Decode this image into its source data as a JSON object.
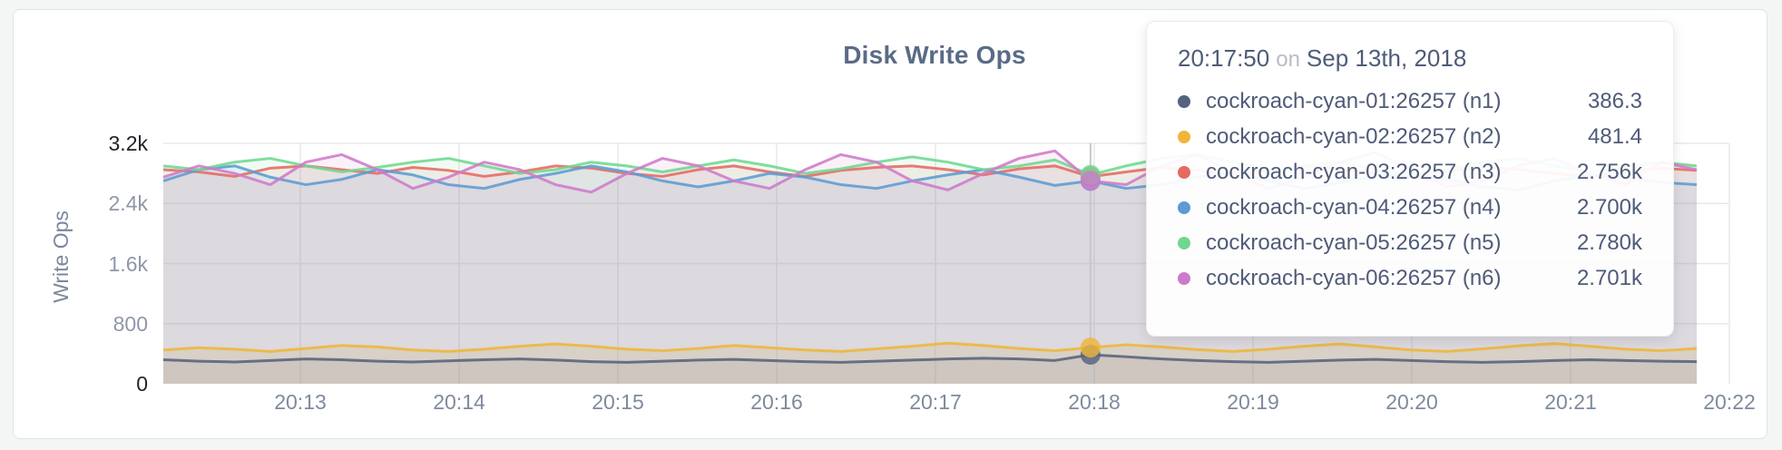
{
  "card": {
    "title": "Disk Write Ops",
    "y_axis_label": "Write Ops"
  },
  "tooltip": {
    "time": "20:17:50",
    "conjunction": "on",
    "date": "Sep 13th, 2018",
    "entries": [
      {
        "label": "cockroach-cyan-01:26257 (n1)",
        "value": "386.3",
        "color": "#56627E"
      },
      {
        "label": "cockroach-cyan-02:26257 (n2)",
        "value": "481.4",
        "color": "#EEB639"
      },
      {
        "label": "cockroach-cyan-03:26257 (n3)",
        "value": "2.756k",
        "color": "#E56A62"
      },
      {
        "label": "cockroach-cyan-04:26257 (n4)",
        "value": "2.700k",
        "color": "#5C9BD3"
      },
      {
        "label": "cockroach-cyan-05:26257 (n5)",
        "value": "2.780k",
        "color": "#70D78F"
      },
      {
        "label": "cockroach-cyan-06:26257 (n6)",
        "value": "2.701k",
        "color": "#CF7AC8"
      }
    ]
  },
  "chart_data": {
    "type": "line",
    "title": "Disk Write Ops",
    "ylabel": "Write Ops",
    "ylim": [
      0,
      3200
    ],
    "grid": true,
    "hover_time": "20:17:50",
    "hover_index": 26,
    "x_ticks": [
      "20:13",
      "20:14",
      "20:15",
      "20:16",
      "20:17",
      "20:18",
      "20:19",
      "20:20",
      "20:21",
      "20:22"
    ],
    "y_ticks": [
      {
        "label": "0",
        "value": 0,
        "emph": true
      },
      {
        "label": "800",
        "value": 800,
        "emph": false
      },
      {
        "label": "1.6k",
        "value": 1600,
        "emph": false
      },
      {
        "label": "2.4k",
        "value": 2400,
        "emph": false
      },
      {
        "label": "3.2k",
        "value": 3200,
        "emph": true
      }
    ],
    "series": [
      {
        "name": "cockroach-cyan-01:26257 (n1)",
        "node": "n1",
        "color": "#56627E",
        "fill_opacity": 0.12,
        "hover_value": 386.3,
        "values": [
          320,
          300,
          290,
          310,
          330,
          320,
          300,
          290,
          305,
          320,
          330,
          315,
          295,
          285,
          300,
          315,
          325,
          310,
          295,
          285,
          300,
          315,
          330,
          340,
          330,
          310,
          386,
          360,
          330,
          310,
          295,
          285,
          300,
          315,
          325,
          310,
          295,
          285,
          295,
          310,
          320,
          310,
          300,
          295
        ]
      },
      {
        "name": "cockroach-cyan-02:26257 (n2)",
        "node": "n2",
        "color": "#EEB639",
        "fill_opacity": 0.18,
        "hover_value": 481.4,
        "values": [
          450,
          480,
          460,
          430,
          470,
          510,
          490,
          450,
          430,
          460,
          500,
          530,
          500,
          460,
          440,
          470,
          510,
          480,
          450,
          430,
          465,
          500,
          540,
          510,
          470,
          440,
          481,
          520,
          490,
          455,
          430,
          460,
          500,
          530,
          490,
          450,
          430,
          465,
          505,
          535,
          500,
          460,
          440,
          470
        ]
      },
      {
        "name": "cockroach-cyan-03:26257 (n3)",
        "node": "n3",
        "color": "#E56A62",
        "fill_opacity": 0.1,
        "hover_value": 2756,
        "values": [
          2850,
          2820,
          2760,
          2870,
          2900,
          2850,
          2800,
          2880,
          2840,
          2760,
          2820,
          2900,
          2870,
          2800,
          2760,
          2850,
          2900,
          2820,
          2760,
          2840,
          2880,
          2900,
          2850,
          2780,
          2860,
          2900,
          2756,
          2820,
          2880,
          2840,
          2780,
          2850,
          2900,
          2860,
          2800,
          2750,
          2830,
          2890,
          2850,
          2800,
          2760,
          2820,
          2870,
          2840
        ]
      },
      {
        "name": "cockroach-cyan-04:26257 (n4)",
        "node": "n4",
        "color": "#5C9BD3",
        "fill_opacity": 0.1,
        "hover_value": 2700,
        "values": [
          2700,
          2850,
          2900,
          2750,
          2650,
          2720,
          2850,
          2780,
          2650,
          2600,
          2720,
          2800,
          2900,
          2820,
          2700,
          2620,
          2700,
          2800,
          2750,
          2650,
          2600,
          2700,
          2780,
          2850,
          2750,
          2640,
          2700,
          2600,
          2650,
          2750,
          2820,
          2700,
          2600,
          2680,
          2760,
          2800,
          2720,
          2620,
          2580,
          2700,
          2780,
          2740,
          2680,
          2650
        ]
      },
      {
        "name": "cockroach-cyan-05:26257 (n5)",
        "node": "n5",
        "color": "#70D78F",
        "fill_opacity": 0.1,
        "hover_value": 2780,
        "values": [
          2900,
          2850,
          2950,
          3000,
          2900,
          2820,
          2880,
          2950,
          3000,
          2900,
          2800,
          2850,
          2950,
          2900,
          2820,
          2900,
          2980,
          2900,
          2800,
          2860,
          2950,
          3020,
          2950,
          2850,
          2900,
          2980,
          2780,
          2900,
          3000,
          3050,
          2950,
          2850,
          2900,
          2950,
          2850,
          2780,
          2850,
          2950,
          3000,
          2900,
          2820,
          2880,
          2950,
          2900
        ]
      },
      {
        "name": "cockroach-cyan-06:26257 (n6)",
        "node": "n6",
        "color": "#CF7AC8",
        "fill_opacity": 0.1,
        "hover_value": 2701,
        "values": [
          2750,
          2900,
          2800,
          2650,
          2950,
          3050,
          2850,
          2600,
          2750,
          2950,
          2850,
          2650,
          2550,
          2800,
          3000,
          2900,
          2700,
          2600,
          2850,
          3050,
          2950,
          2700,
          2580,
          2800,
          3000,
          3100,
          2701,
          2650,
          2900,
          3050,
          2800,
          2600,
          2750,
          2950,
          3080,
          2850,
          2620,
          2700,
          2900,
          3000,
          2800,
          2650,
          2950,
          2850
        ]
      }
    ]
  }
}
